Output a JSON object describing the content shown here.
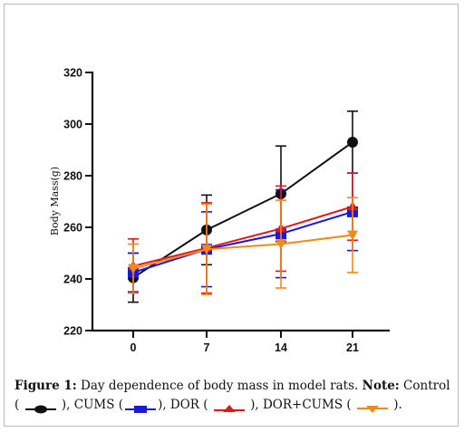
{
  "chart_data": {
    "type": "line",
    "title": "",
    "xlabel": "",
    "ylabel": "Body Mass(g)",
    "categories": [
      "0",
      "7",
      "14",
      "21"
    ],
    "x": [
      0,
      7,
      14,
      21
    ],
    "ylim": [
      220,
      320
    ],
    "yticks": [
      220,
      240,
      260,
      280,
      300,
      320
    ],
    "grid": false,
    "series": [
      {
        "name": "Control",
        "color": "#111111",
        "marker": "circle",
        "values": [
          240.5,
          259,
          273,
          293
        ],
        "err": [
          9.5,
          13.5,
          18.5,
          12
        ]
      },
      {
        "name": "CUMS",
        "color": "#1a1ad6",
        "marker": "square",
        "values": [
          242.5,
          251.5,
          257.5,
          266
        ],
        "err": [
          7.5,
          14.5,
          17,
          15
        ]
      },
      {
        "name": "DOR",
        "color": "#e01818",
        "marker": "triangle-up",
        "values": [
          245,
          252,
          259.5,
          268
        ],
        "err": [
          10.5,
          17.5,
          16.5,
          13
        ]
      },
      {
        "name": "DOR+CUMS",
        "color": "#f08a1c",
        "marker": "triangle-down",
        "values": [
          244,
          251.5,
          253.5,
          257
        ],
        "err": [
          9.5,
          17.5,
          17,
          14.5
        ]
      }
    ]
  },
  "caption": {
    "figure_label": "Figure 1:",
    "text": " Day dependence of body mass in model rats. ",
    "note_label": "Note:",
    "control": " Control",
    "open": "(",
    "cums": "), CUMS (",
    "dor": "), DOR (",
    "dorcums": "), DOR+CUMS (",
    "close": ")."
  }
}
